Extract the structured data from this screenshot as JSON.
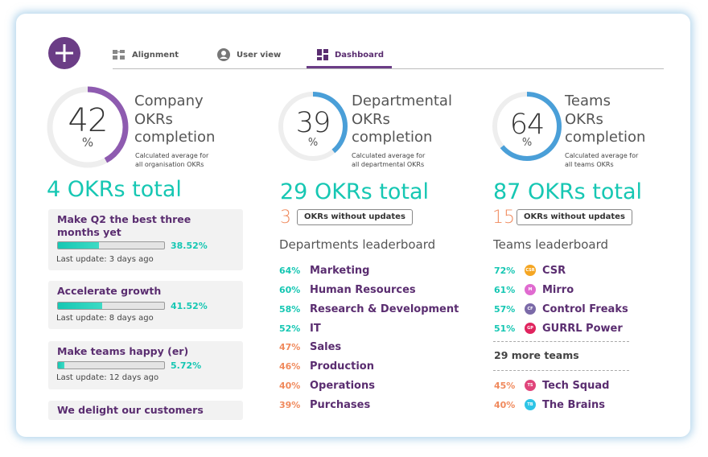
{
  "tabs": [
    {
      "label": "Alignment"
    },
    {
      "label": "User view"
    },
    {
      "label": "Dashboard"
    }
  ],
  "active_tab": "Dashboard",
  "summaries": [
    {
      "percent": "42",
      "percent_sign": "%",
      "value": 0.42,
      "title_lines": [
        "Company",
        "OKRs",
        "completion"
      ],
      "subtitle_lines": [
        "Calculated average for",
        "all organisation OKRs"
      ],
      "total": "4 OKRs total",
      "ring_color": "#8e5bb0"
    },
    {
      "percent": "39",
      "percent_sign": "%",
      "value": 0.39,
      "title_lines": [
        "Departmental",
        "OKRs",
        "completion"
      ],
      "subtitle_lines": [
        "Calculated average for",
        "all departmental OKRs"
      ],
      "total": "29 OKRs total",
      "ring_color": "#4a9fd8"
    },
    {
      "percent": "64",
      "percent_sign": "%",
      "value": 0.64,
      "title_lines": [
        "Teams",
        "OKRs",
        "completion"
      ],
      "subtitle_lines": [
        "Calculated average for",
        "all teams OKRs"
      ],
      "total": "87 OKRs total",
      "ring_color": "#4a9fd8"
    }
  ],
  "objectives": [
    {
      "title_lines": [
        "Make Q2 the best three",
        "months yet"
      ],
      "progress": 0.3852,
      "percent": "38.52%",
      "update": "Last update: 3 days ago"
    },
    {
      "title_lines": [
        "Accelerate growth"
      ],
      "progress": 0.4152,
      "percent": "41.52%",
      "update": "Last update: 8 days ago"
    },
    {
      "title_lines": [
        "Make teams happy (er)"
      ],
      "progress": 0.0572,
      "percent": "5.72%",
      "update": "Last update: 12 days ago"
    },
    {
      "title_lines": [
        "We delight our customers"
      ]
    }
  ],
  "departments": {
    "no_updates_count": "3",
    "no_updates_label": "OKRs without updates",
    "leaderboard_title": "Departments leaderboard",
    "items": [
      {
        "pct": "64%",
        "name": "Marketing",
        "level": "hi"
      },
      {
        "pct": "60%",
        "name": "Human Resources",
        "level": "hi"
      },
      {
        "pct": "58%",
        "name": "Research & Development",
        "level": "hi"
      },
      {
        "pct": "52%",
        "name": "IT",
        "level": "hi"
      },
      {
        "pct": "47%",
        "name": "Sales",
        "level": "lo"
      },
      {
        "pct": "46%",
        "name": "Production",
        "level": "lo"
      },
      {
        "pct": "40%",
        "name": "Operations",
        "level": "lo"
      },
      {
        "pct": "39%",
        "name": "Purchases",
        "level": "lo"
      }
    ]
  },
  "teams": {
    "no_updates_count": "15",
    "no_updates_label": "OKRs without updates",
    "leaderboard_title": "Teams leaderboard",
    "top": [
      {
        "pct": "72%",
        "name": "CSR",
        "initials": "CSR",
        "color": "#f5a623",
        "level": "hi"
      },
      {
        "pct": "61%",
        "name": "Mirro",
        "initials": "M",
        "color": "#e06bd0",
        "level": "hi"
      },
      {
        "pct": "57%",
        "name": "Control Freaks",
        "initials": "CF",
        "color": "#7b6aa8",
        "level": "hi"
      },
      {
        "pct": "51%",
        "name": "GURRL Power",
        "initials": "GP",
        "color": "#e0245e",
        "level": "hi"
      }
    ],
    "more_label": "29 more teams",
    "bottom": [
      {
        "pct": "45%",
        "name": "Tech Squad",
        "initials": "TS",
        "color": "#e0457b",
        "level": "lo"
      },
      {
        "pct": "40%",
        "name": "The Brains",
        "initials": "TB",
        "color": "#2ec4e6",
        "level": "lo"
      }
    ]
  }
}
